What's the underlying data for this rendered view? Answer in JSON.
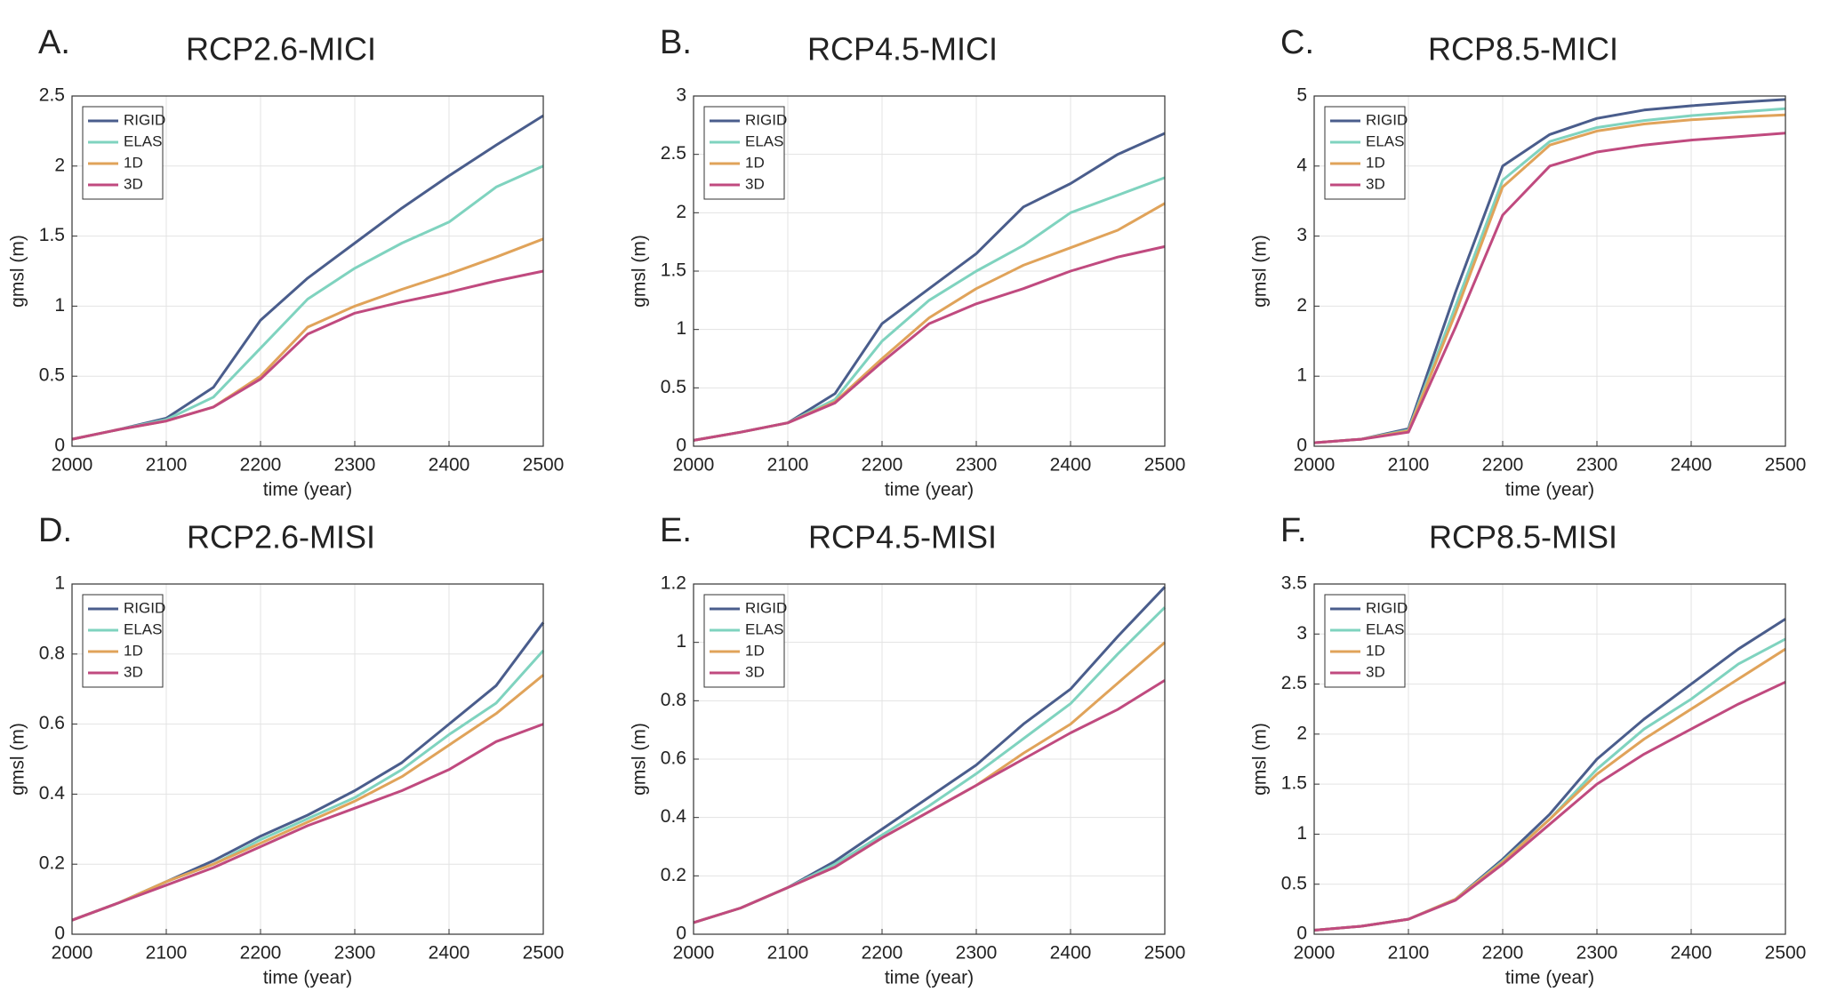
{
  "chart_data": [
    {
      "type": "line",
      "panel_label": "A.",
      "title": "RCP2.6-MICI",
      "x_label": "time (year)",
      "y_label": "gmsl (m)",
      "x": [
        2000,
        2050,
        2100,
        2150,
        2200,
        2250,
        2300,
        2350,
        2400,
        2450,
        2500
      ],
      "xlim": [
        2000,
        2500
      ],
      "xticks": [
        2000,
        2100,
        2200,
        2300,
        2400,
        2500
      ],
      "ylim": [
        0,
        2.5
      ],
      "yticks": [
        0,
        0.5,
        1,
        1.5,
        2,
        2.5
      ],
      "grid": true,
      "legend": "upper left",
      "series": [
        {
          "name": "RIGID",
          "color": "#4a5d8c",
          "values": [
            0.05,
            0.12,
            0.2,
            0.42,
            0.9,
            1.2,
            1.45,
            1.7,
            1.93,
            2.15,
            2.36
          ]
        },
        {
          "name": "ELAS",
          "color": "#7fd3bf",
          "values": [
            0.05,
            0.12,
            0.19,
            0.35,
            0.7,
            1.05,
            1.27,
            1.45,
            1.6,
            1.85,
            2.0
          ]
        },
        {
          "name": "1D",
          "color": "#e0a35a",
          "values": [
            0.05,
            0.12,
            0.18,
            0.28,
            0.5,
            0.85,
            1.0,
            1.12,
            1.23,
            1.35,
            1.48
          ]
        },
        {
          "name": "3D",
          "color": "#c04a7f",
          "values": [
            0.05,
            0.12,
            0.18,
            0.28,
            0.48,
            0.8,
            0.95,
            1.03,
            1.1,
            1.18,
            1.25
          ]
        }
      ]
    },
    {
      "type": "line",
      "panel_label": "B.",
      "title": "RCP4.5-MICI",
      "x_label": "time (year)",
      "y_label": "gmsl (m)",
      "x": [
        2000,
        2050,
        2100,
        2150,
        2200,
        2250,
        2300,
        2350,
        2400,
        2450,
        2500
      ],
      "xlim": [
        2000,
        2500
      ],
      "xticks": [
        2000,
        2100,
        2200,
        2300,
        2400,
        2500
      ],
      "ylim": [
        0,
        3
      ],
      "yticks": [
        0,
        0.5,
        1,
        1.5,
        2,
        2.5,
        3
      ],
      "grid": true,
      "legend": "upper left",
      "series": [
        {
          "name": "RIGID",
          "color": "#4a5d8c",
          "values": [
            0.05,
            0.12,
            0.2,
            0.45,
            1.05,
            1.35,
            1.65,
            2.05,
            2.25,
            2.5,
            2.68
          ]
        },
        {
          "name": "ELAS",
          "color": "#7fd3bf",
          "values": [
            0.05,
            0.12,
            0.2,
            0.4,
            0.9,
            1.25,
            1.5,
            1.72,
            2.0,
            2.15,
            2.3
          ]
        },
        {
          "name": "1D",
          "color": "#e0a35a",
          "values": [
            0.05,
            0.12,
            0.2,
            0.38,
            0.75,
            1.1,
            1.35,
            1.55,
            1.7,
            1.85,
            2.08
          ]
        },
        {
          "name": "3D",
          "color": "#c04a7f",
          "values": [
            0.05,
            0.12,
            0.2,
            0.37,
            0.72,
            1.05,
            1.22,
            1.35,
            1.5,
            1.62,
            1.71
          ]
        }
      ]
    },
    {
      "type": "line",
      "panel_label": "C.",
      "title": "RCP8.5-MICI",
      "x_label": "time (year)",
      "y_label": "gmsl (m)",
      "x": [
        2000,
        2050,
        2100,
        2150,
        2200,
        2250,
        2300,
        2350,
        2400,
        2450,
        2500
      ],
      "xlim": [
        2000,
        2500
      ],
      "xticks": [
        2000,
        2100,
        2200,
        2300,
        2400,
        2500
      ],
      "ylim": [
        0,
        5
      ],
      "yticks": [
        0,
        1,
        2,
        3,
        4,
        5
      ],
      "grid": true,
      "legend": "upper left",
      "series": [
        {
          "name": "RIGID",
          "color": "#4a5d8c",
          "values": [
            0.05,
            0.1,
            0.25,
            2.2,
            4.0,
            4.45,
            4.68,
            4.8,
            4.86,
            4.91,
            4.95
          ]
        },
        {
          "name": "ELAS",
          "color": "#7fd3bf",
          "values": [
            0.05,
            0.1,
            0.23,
            2.0,
            3.8,
            4.35,
            4.55,
            4.65,
            4.72,
            4.77,
            4.82
          ]
        },
        {
          "name": "1D",
          "color": "#e0a35a",
          "values": [
            0.05,
            0.1,
            0.22,
            1.9,
            3.7,
            4.3,
            4.5,
            4.6,
            4.66,
            4.7,
            4.73
          ]
        },
        {
          "name": "3D",
          "color": "#c04a7f",
          "values": [
            0.05,
            0.1,
            0.2,
            1.7,
            3.3,
            4.0,
            4.2,
            4.3,
            4.37,
            4.42,
            4.47
          ]
        }
      ]
    },
    {
      "type": "line",
      "panel_label": "D.",
      "title": "RCP2.6-MISI",
      "x_label": "time (year)",
      "y_label": "gmsl (m)",
      "x": [
        2000,
        2050,
        2100,
        2150,
        2200,
        2250,
        2300,
        2350,
        2400,
        2450,
        2500
      ],
      "xlim": [
        2000,
        2500
      ],
      "xticks": [
        2000,
        2100,
        2200,
        2300,
        2400,
        2500
      ],
      "ylim": [
        0,
        1
      ],
      "yticks": [
        0,
        0.2,
        0.4,
        0.6,
        0.8,
        1
      ],
      "grid": true,
      "legend": "upper left",
      "series": [
        {
          "name": "RIGID",
          "color": "#4a5d8c",
          "values": [
            0.04,
            0.09,
            0.15,
            0.21,
            0.28,
            0.34,
            0.41,
            0.49,
            0.6,
            0.71,
            0.89
          ]
        },
        {
          "name": "ELAS",
          "color": "#7fd3bf",
          "values": [
            0.04,
            0.09,
            0.15,
            0.2,
            0.27,
            0.33,
            0.39,
            0.47,
            0.57,
            0.66,
            0.81
          ]
        },
        {
          "name": "1D",
          "color": "#e0a35a",
          "values": [
            0.04,
            0.09,
            0.15,
            0.2,
            0.26,
            0.32,
            0.38,
            0.45,
            0.54,
            0.63,
            0.74
          ]
        },
        {
          "name": "3D",
          "color": "#c04a7f",
          "values": [
            0.04,
            0.09,
            0.14,
            0.19,
            0.25,
            0.31,
            0.36,
            0.41,
            0.47,
            0.55,
            0.6
          ]
        }
      ]
    },
    {
      "type": "line",
      "panel_label": "E.",
      "title": "RCP4.5-MISI",
      "x_label": "time (year)",
      "y_label": "gmsl (m)",
      "x": [
        2000,
        2050,
        2100,
        2150,
        2200,
        2250,
        2300,
        2350,
        2400,
        2450,
        2500
      ],
      "xlim": [
        2000,
        2500
      ],
      "xticks": [
        2000,
        2100,
        2200,
        2300,
        2400,
        2500
      ],
      "ylim": [
        0,
        1.2
      ],
      "yticks": [
        0,
        0.2,
        0.4,
        0.6,
        0.8,
        1,
        1.2
      ],
      "grid": true,
      "legend": "upper left",
      "series": [
        {
          "name": "RIGID",
          "color": "#4a5d8c",
          "values": [
            0.04,
            0.09,
            0.16,
            0.25,
            0.36,
            0.47,
            0.58,
            0.72,
            0.84,
            1.02,
            1.19
          ]
        },
        {
          "name": "ELAS",
          "color": "#7fd3bf",
          "values": [
            0.04,
            0.09,
            0.16,
            0.24,
            0.34,
            0.44,
            0.55,
            0.67,
            0.79,
            0.96,
            1.12
          ]
        },
        {
          "name": "1D",
          "color": "#e0a35a",
          "values": [
            0.04,
            0.09,
            0.16,
            0.23,
            0.33,
            0.42,
            0.51,
            0.62,
            0.72,
            0.86,
            1.0
          ]
        },
        {
          "name": "3D",
          "color": "#c04a7f",
          "values": [
            0.04,
            0.09,
            0.16,
            0.23,
            0.33,
            0.42,
            0.51,
            0.6,
            0.69,
            0.77,
            0.87
          ]
        }
      ]
    },
    {
      "type": "line",
      "panel_label": "F.",
      "title": "RCP8.5-MISI",
      "x_label": "time (year)",
      "y_label": "gmsl (m)",
      "x": [
        2000,
        2050,
        2100,
        2150,
        2200,
        2250,
        2300,
        2350,
        2400,
        2450,
        2500
      ],
      "xlim": [
        2000,
        2500
      ],
      "xticks": [
        2000,
        2100,
        2200,
        2300,
        2400,
        2500
      ],
      "ylim": [
        0,
        3.5
      ],
      "yticks": [
        0,
        0.5,
        1,
        1.5,
        2,
        2.5,
        3,
        3.5
      ],
      "grid": true,
      "legend": "upper left",
      "series": [
        {
          "name": "RIGID",
          "color": "#4a5d8c",
          "values": [
            0.04,
            0.08,
            0.15,
            0.35,
            0.75,
            1.2,
            1.75,
            2.15,
            2.5,
            2.85,
            3.15
          ]
        },
        {
          "name": "ELAS",
          "color": "#7fd3bf",
          "values": [
            0.04,
            0.08,
            0.15,
            0.35,
            0.73,
            1.15,
            1.65,
            2.05,
            2.35,
            2.7,
            2.95
          ]
        },
        {
          "name": "1D",
          "color": "#e0a35a",
          "values": [
            0.04,
            0.08,
            0.15,
            0.35,
            0.72,
            1.15,
            1.6,
            1.95,
            2.25,
            2.55,
            2.85
          ]
        },
        {
          "name": "3D",
          "color": "#c04a7f",
          "values": [
            0.04,
            0.08,
            0.15,
            0.34,
            0.7,
            1.1,
            1.5,
            1.8,
            2.05,
            2.3,
            2.52
          ]
        }
      ]
    }
  ]
}
